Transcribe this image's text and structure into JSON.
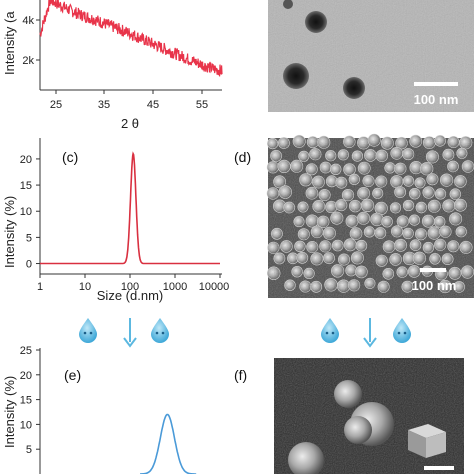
{
  "panels": {
    "a": {
      "ylabel": "Intensity (a",
      "xlabel": "2 θ",
      "yticks": [
        "2k",
        "4k"
      ],
      "xticks": [
        "25",
        "35",
        "45",
        "55"
      ]
    },
    "b": {
      "scale": "100 nm"
    },
    "c": {
      "label": "(c)",
      "ylabel": "Intensity (%)",
      "xlabel": "Size (d.nm)",
      "yticks": [
        "0",
        "5",
        "10",
        "15",
        "20"
      ],
      "xticks": [
        "1",
        "10",
        "100",
        "1000",
        "10000"
      ]
    },
    "d": {
      "label": "(d)",
      "scale": "100 nm"
    },
    "e": {
      "label": "(e)",
      "ylabel": "Intensity (%)",
      "yticks": [
        "5",
        "10",
        "15",
        "20",
        "25"
      ]
    },
    "f": {
      "label": "(f)"
    }
  },
  "chart_data": [
    {
      "type": "line",
      "panel": "a",
      "xlabel": "2 θ",
      "ylabel": "Intensity (a",
      "xlim": [
        22,
        58
      ],
      "ylim": [
        0,
        5200
      ],
      "x": [
        22,
        24,
        26,
        28,
        30,
        33,
        36,
        40,
        44,
        48,
        52,
        56,
        58
      ],
      "y": [
        3200,
        5200,
        4900,
        4600,
        4350,
        4050,
        3700,
        3250,
        2700,
        2200,
        1700,
        1250,
        1100
      ],
      "color": "#e8344a"
    },
    {
      "type": "line",
      "panel": "c",
      "xlabel": "Size (d.nm)",
      "ylabel": "Intensity (%)",
      "xscale": "log",
      "xlim": [
        1,
        10000
      ],
      "ylim": [
        -2,
        24
      ],
      "x": [
        1,
        10,
        60,
        75,
        90,
        105,
        120,
        140,
        165,
        200,
        300,
        1000,
        10000
      ],
      "y": [
        0,
        0,
        0,
        0.5,
        5,
        15,
        21,
        17,
        6,
        0.3,
        0,
        0,
        0
      ],
      "color": "#d93040"
    },
    {
      "type": "line",
      "panel": "e",
      "ylabel": "Intensity (%)",
      "ylim": [
        0,
        25
      ],
      "x": [
        0.55,
        0.6,
        0.65,
        0.7,
        0.75,
        0.8,
        0.85
      ],
      "y": [
        0,
        4,
        10,
        12,
        9,
        4,
        0
      ],
      "color": "#4a9ad8"
    }
  ]
}
